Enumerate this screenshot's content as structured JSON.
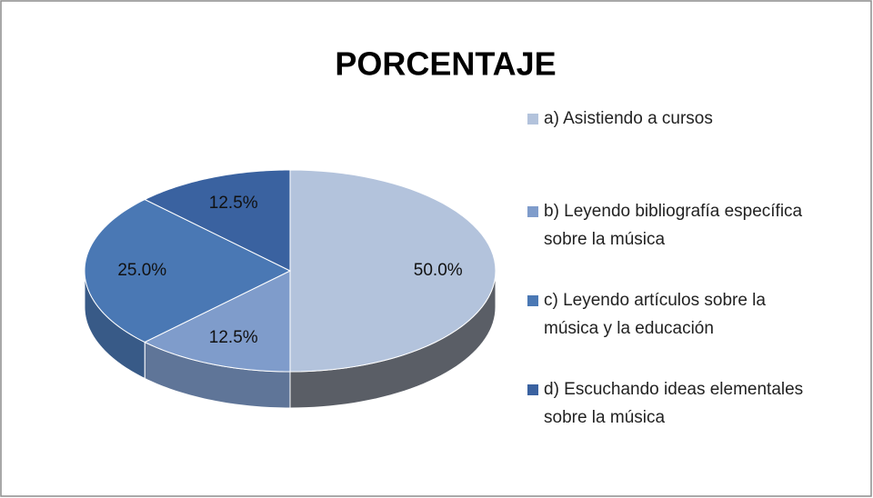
{
  "chart_data": {
    "type": "pie",
    "title": "PORCENTAJE",
    "categories": [
      "a) Asistiendo a cursos",
      "b) Leyendo bibliografía específica sobre la música",
      "c) Leyendo artículos sobre la música y la educación",
      "d) Escuchando ideas elementales sobre la música"
    ],
    "values": [
      50,
      12.5,
      25,
      12.5
    ],
    "value_labels": [
      "50.0%",
      "12.5%",
      "25.0%",
      "12.5%"
    ],
    "colors": [
      "#b3c3dc",
      "#7f9ccb",
      "#4a78b4",
      "#3a62a0"
    ],
    "legend": "right"
  }
}
